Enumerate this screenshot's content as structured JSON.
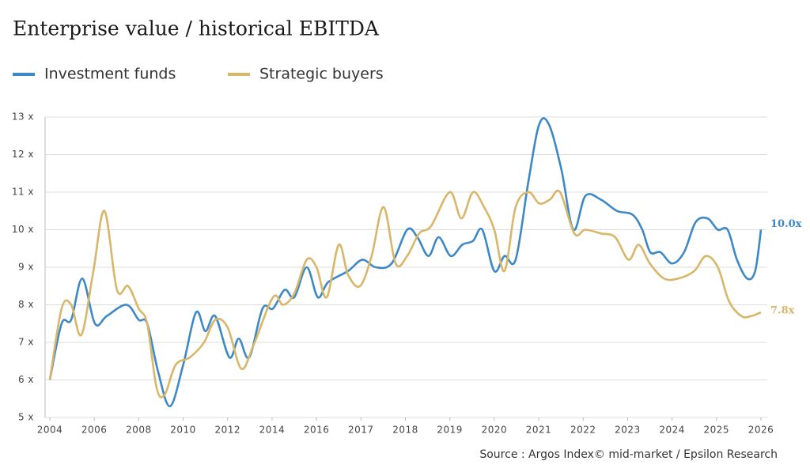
{
  "chart_data": {
    "type": "line",
    "title": "Enterprise value / historical EBITDA",
    "source": "Source : Argos Index© mid-market / Epsilon Research",
    "xlim": [
      2004,
      2026
    ],
    "xticks": [
      2004,
      2006,
      2008,
      2010,
      2012,
      2014,
      2016,
      2017,
      2018,
      2019,
      2020,
      2021,
      2022,
      2023,
      2024,
      2025,
      2026
    ],
    "ylim": [
      5,
      13
    ],
    "yticks": [
      {
        "value": 5,
        "label": "5 x"
      },
      {
        "value": 6,
        "label": "6 x"
      },
      {
        "value": 7,
        "label": "7 x"
      },
      {
        "value": 8,
        "label": "8 x"
      },
      {
        "value": 9,
        "label": "9 x"
      },
      {
        "value": 10,
        "label": "10 x"
      },
      {
        "value": 11,
        "label": "11 x"
      },
      {
        "value": 12,
        "label": "12 x"
      },
      {
        "value": 13,
        "label": "13 x"
      }
    ],
    "grid": true,
    "series": [
      {
        "name": "Investment funds",
        "color": "#3d88c6",
        "x": [
          2004.0,
          2004.53,
          2004.96,
          2005.46,
          2006.03,
          2006.56,
          2007.45,
          2008.0,
          2008.38,
          2008.88,
          2009.41,
          2010.0,
          2010.58,
          2011.0,
          2011.44,
          2012.08,
          2012.5,
          2012.97,
          2013.57,
          2014.04,
          2014.57,
          2015.0,
          2015.56,
          2016.03,
          2016.26,
          2016.71,
          2017.03,
          2017.33,
          2017.69,
          2018.04,
          2018.27,
          2018.52,
          2018.75,
          2019.02,
          2019.28,
          2019.52,
          2019.73,
          2020.0,
          2020.23,
          2020.48,
          2020.77,
          2021.01,
          2021.23,
          2021.51,
          2021.78,
          2022.05,
          2022.4,
          2022.76,
          2023.11,
          2023.33,
          2023.51,
          2023.74,
          2024.0,
          2024.27,
          2024.53,
          2024.8,
          2025.03,
          2025.25,
          2025.46,
          2025.69,
          2025.87,
          2026.0
        ],
        "values": [
          6.0,
          7.5,
          7.6,
          8.7,
          7.5,
          7.7,
          8.0,
          7.6,
          7.5,
          6.2,
          5.3,
          6.4,
          7.8,
          7.3,
          7.7,
          6.6,
          7.1,
          6.6,
          7.9,
          7.9,
          8.4,
          8.2,
          9.0,
          8.2,
          8.6,
          8.9,
          9.2,
          9.0,
          9.1,
          10.0,
          9.8,
          9.3,
          9.8,
          9.3,
          9.6,
          9.7,
          10.0,
          8.9,
          9.3,
          9.2,
          11.3,
          12.8,
          12.8,
          11.6,
          10.0,
          10.9,
          10.8,
          10.5,
          10.4,
          10.0,
          9.4,
          9.4,
          9.1,
          9.4,
          10.2,
          10.3,
          10.0,
          10.0,
          9.2,
          8.7,
          8.9,
          10.0
        ]
      },
      {
        "name": "Strategic buyers",
        "color": "#d8b66a",
        "x": [
          2004.0,
          2004.53,
          2004.96,
          2005.42,
          2005.96,
          2006.46,
          2007.02,
          2007.52,
          2008.0,
          2008.38,
          2008.8,
          2009.16,
          2009.66,
          2010.3,
          2010.94,
          2011.44,
          2012.0,
          2012.61,
          2013.15,
          2014.04,
          2014.5,
          2015.0,
          2015.56,
          2016.0,
          2016.23,
          2016.5,
          2016.71,
          2016.98,
          2017.24,
          2017.51,
          2017.78,
          2018.04,
          2018.31,
          2018.58,
          2019.0,
          2019.26,
          2019.52,
          2019.77,
          2020.0,
          2020.23,
          2020.48,
          2020.77,
          2021.01,
          2021.25,
          2021.48,
          2021.8,
          2022.05,
          2022.4,
          2022.72,
          2023.02,
          2023.25,
          2023.5,
          2023.82,
          2024.14,
          2024.5,
          2024.76,
          2025.03,
          2025.28,
          2025.56,
          2025.78,
          2026.0
        ],
        "values": [
          6.0,
          7.9,
          8.0,
          7.2,
          8.9,
          10.5,
          8.4,
          8.5,
          7.9,
          7.5,
          5.8,
          5.6,
          6.4,
          6.6,
          7.0,
          7.6,
          7.4,
          6.3,
          6.9,
          8.2,
          8.0,
          8.3,
          9.2,
          9.0,
          8.2,
          9.6,
          8.8,
          8.5,
          9.3,
          10.6,
          9.1,
          9.3,
          9.9,
          10.1,
          11.0,
          10.3,
          11.0,
          10.6,
          10.0,
          8.9,
          10.6,
          11.0,
          10.7,
          10.8,
          11.0,
          9.9,
          10.0,
          9.9,
          9.8,
          9.2,
          9.6,
          9.1,
          8.7,
          8.7,
          8.9,
          9.3,
          9.0,
          8.1,
          7.7,
          7.7,
          7.8
        ]
      }
    ],
    "annotations": [
      {
        "label": "10.0x",
        "x": 2026,
        "y": 10.0,
        "color": "#3d88c6"
      },
      {
        "label": "7.8x",
        "x": 2026,
        "y": 7.8,
        "color": "#d8b66a"
      }
    ]
  }
}
